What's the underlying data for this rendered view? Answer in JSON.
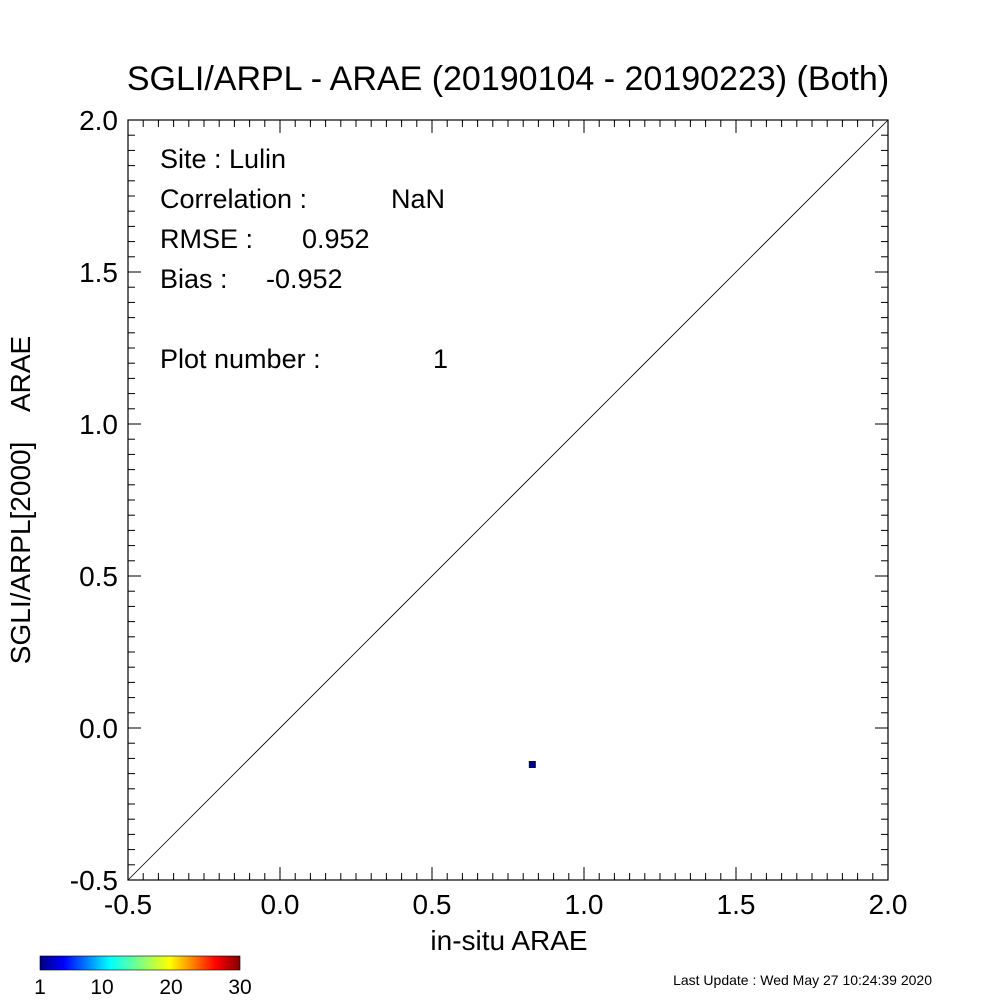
{
  "chart_data": {
    "type": "scatter",
    "title": "SGLI/ARPL - ARAE (20190104 - 20190223) (Both)",
    "xlabel": "in-situ ARAE",
    "ylabel": "SGLI/ARPL[2000]    ARAE",
    "xlim": [
      -0.5,
      2.0
    ],
    "ylim": [
      -0.5,
      2.0
    ],
    "xticks": [
      "-0.5",
      "0.0",
      "0.5",
      "1.0",
      "1.5",
      "2.0"
    ],
    "yticks": [
      "-0.5",
      "0.0",
      "0.5",
      "1.0",
      "1.5",
      "2.0"
    ],
    "reference_line": "1:1",
    "points": [
      {
        "x": 0.83,
        "y": -0.12,
        "count": 1,
        "color": "#00007f"
      }
    ],
    "stats": {
      "site_label": "Site : ",
      "site": "Lulin",
      "correlation_label": "Correlation :",
      "correlation": "NaN",
      "rmse_label": "RMSE :",
      "rmse": "0.952",
      "bias_label": "Bias :",
      "bias": "-0.952",
      "plot_number_label": "Plot number :",
      "plot_number": "1"
    },
    "colorbar": {
      "colormap": "jet",
      "tick_labels": [
        "1",
        "10",
        "20",
        "30"
      ],
      "tick_values": [
        1,
        10,
        20,
        30
      ],
      "range": [
        1,
        30
      ]
    }
  },
  "footer": {
    "last_update": "Last Update : Wed May 27 10:24:39 2020"
  }
}
